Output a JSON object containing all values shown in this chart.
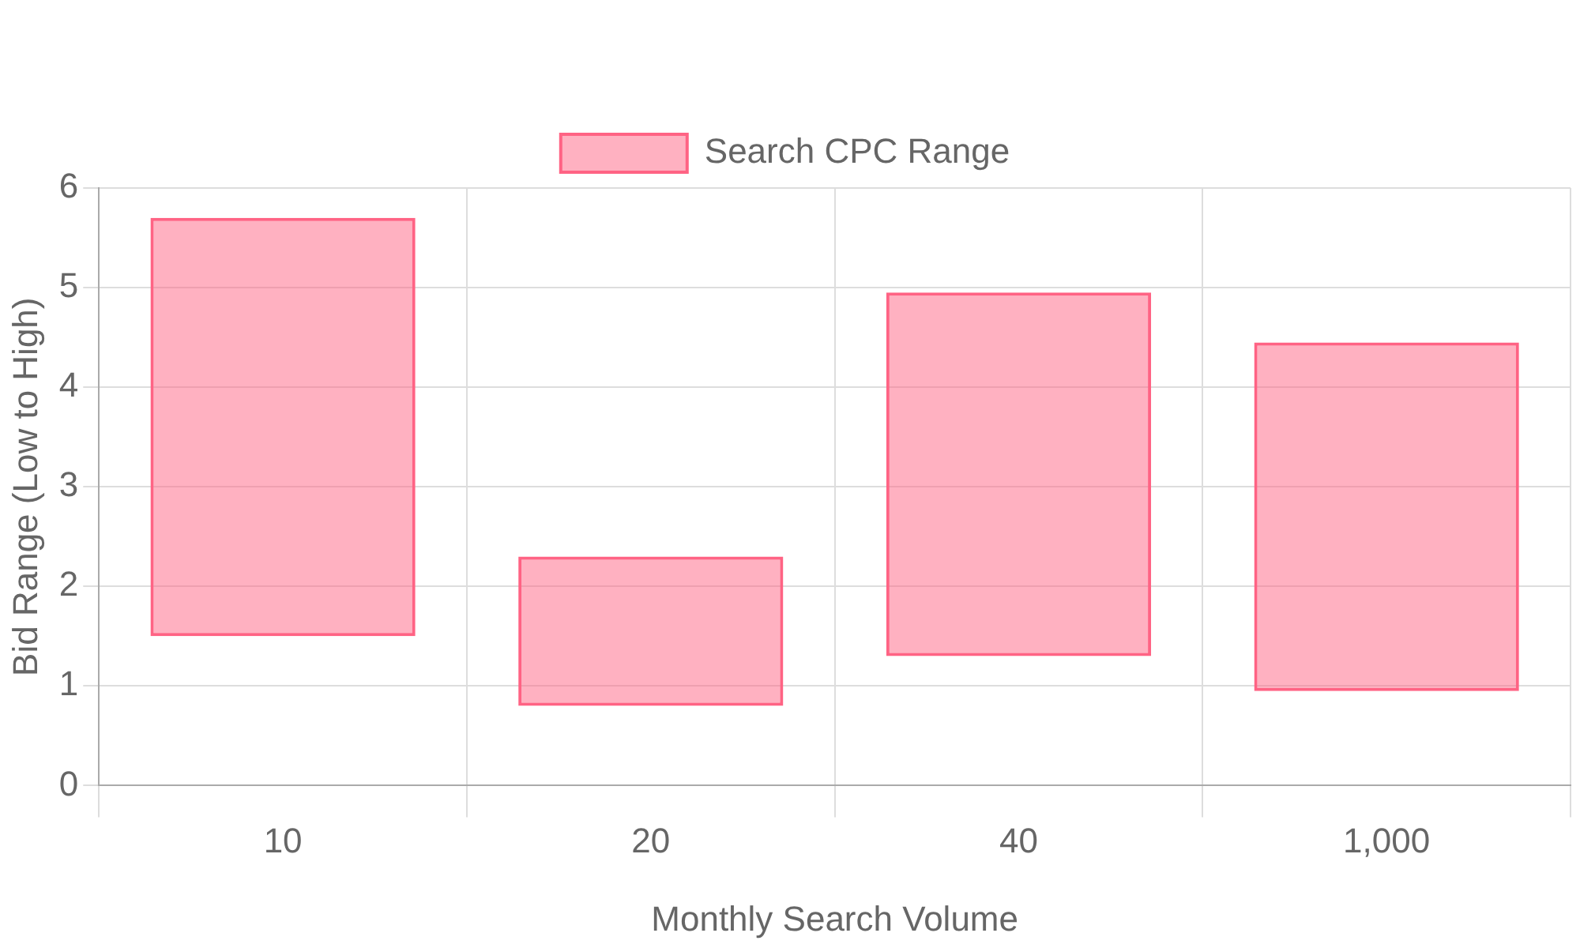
{
  "chart_data": {
    "type": "bar",
    "xlabel": "Monthly Search Volume",
    "ylabel": "Bid Range (Low to High)",
    "categories": [
      "10",
      "20",
      "40",
      "1,000"
    ],
    "series": [
      {
        "name": "Search CPC Range",
        "color": "#ff6384",
        "values": [
          4.2,
          1.5,
          3.65,
          3.5
        ],
        "base": [
          1.5,
          0.8,
          1.3,
          0.95
        ]
      }
    ],
    "ylim": [
      0,
      6
    ],
    "yticks": [
      0,
      1,
      2,
      3,
      4,
      5,
      6
    ],
    "grid": true,
    "legend": "top"
  }
}
